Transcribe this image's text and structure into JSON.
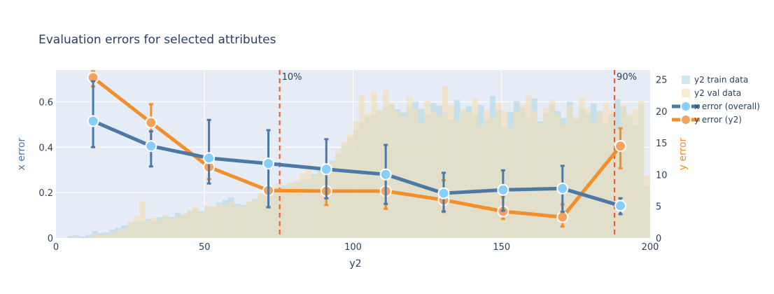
{
  "chart_data": {
    "type": "line",
    "title": "Evaluation errors for selected attributes",
    "xlabel": "y2",
    "ylabel_left": "x error",
    "ylabel_right": "y error",
    "xlim": [
      0,
      200
    ],
    "ylim_left": [
      0,
      0.74
    ],
    "ylim_right": [
      0,
      26.5
    ],
    "x_ticks": [
      0,
      50,
      100,
      150,
      200
    ],
    "y_left_ticks": [
      0,
      0.2,
      0.4,
      0.6
    ],
    "y_left_tick_labels": [
      "0",
      "0.2",
      "0.4",
      "0.6"
    ],
    "y_right_ticks": [
      0,
      5,
      10,
      15,
      20,
      25
    ],
    "grid": true,
    "legend_position": "top-right",
    "colors": {
      "x_line": "#4c78a8",
      "x_marker": "#87cefa",
      "y_line": "#f28e2b",
      "y_marker": "#f5a25d",
      "train_hist": "#add8e6",
      "val_hist": "#f5deb3",
      "vline": "#f05a28",
      "plot_bg": "#e5ecf6"
    },
    "vlines": [
      {
        "x": 75.3,
        "label": "10%"
      },
      {
        "x": 188,
        "label": "90%"
      }
    ],
    "x_error": {
      "name": "x error (overall)",
      "x": [
        12.5,
        32,
        51.5,
        71.5,
        91,
        111,
        130.5,
        150.5,
        170.5,
        190
      ],
      "y": [
        0.515,
        0.405,
        0.352,
        0.328,
        0.303,
        0.28,
        0.197,
        0.212,
        0.218,
        0.142
      ],
      "err_upper": [
        0.69,
        0.47,
        0.52,
        0.475,
        0.435,
        0.41,
        0.287,
        0.298,
        0.318,
        0.175
      ],
      "err_lower": [
        0.4,
        0.315,
        0.24,
        0.135,
        0.175,
        0.15,
        0.117,
        0.12,
        0.115,
        0.105
      ]
    },
    "y_error": {
      "name": "y error (y2)",
      "x": [
        12.5,
        32,
        51.5,
        71.5,
        91,
        111,
        130.5,
        150.5,
        170.5,
        190
      ],
      "y": [
        25.3,
        18.2,
        11.2,
        7.5,
        7.4,
        7.4,
        6.0,
        4.2,
        3.3,
        14.5
      ],
      "err_upper": [
        26.3,
        21.1,
        13.0,
        11.9,
        10.5,
        10.2,
        9.1,
        6.5,
        5.3,
        17.3
      ],
      "err_lower": [
        23.9,
        15.3,
        9.3,
        4.9,
        5.2,
        4.6,
        4.1,
        3.0,
        1.8,
        11.0
      ]
    },
    "train_hist": {
      "name": "y2 train data",
      "bin_width": 2,
      "start": 0,
      "counts": [
        0,
        0,
        0.3,
        0.4,
        0.2,
        0.5,
        1.1,
        0.8,
        0.9,
        1.3,
        1.6,
        2.0,
        2.4,
        2.6,
        2.5,
        3.0,
        2.7,
        3.3,
        3.6,
        3.3,
        4.0,
        3.7,
        4.3,
        4.6,
        4.2,
        5.0,
        4.9,
        5.6,
        6.0,
        6.4,
        5.4,
        5.2,
        5.7,
        6.2,
        7.0,
        7.3,
        7.7,
        8.1,
        8.3,
        8.6,
        8.8,
        9.2,
        9.4,
        10.1,
        10.7,
        11.4,
        12.2,
        13.3,
        14.6,
        15.9,
        17.1,
        18.3,
        19.1,
        19.6,
        20.0,
        20.7,
        21.0,
        20.3,
        19.8,
        20.6,
        21.5,
        20.4,
        19.4,
        21.3,
        20.9,
        19.8,
        18.7,
        21.8,
        20.0,
        20.8,
        19.4,
        21.0,
        18.5,
        22.4,
        20.2,
        17.5,
        19.9,
        21.6,
        20.6,
        19.0,
        22.0,
        18.4,
        19.7,
        21.1,
        20.0,
        18.9,
        21.5,
        18.7,
        20.4,
        19.6,
        21.2,
        20.0,
        18.2,
        19.5,
        21.9,
        20.8,
        19.1,
        17.8,
        21.0,
        8.2
      ]
    },
    "val_hist": {
      "name": "y2 val data",
      "bin_width": 2,
      "start": 0,
      "counts": [
        0,
        0,
        0,
        0.3,
        0,
        0.2,
        0.7,
        0.5,
        0.6,
        0.9,
        1.2,
        1.5,
        2.6,
        3.5,
        5.8,
        2.7,
        3.2,
        2.9,
        3.6,
        3.0,
        3.5,
        3.8,
        4.4,
        4.9,
        4.0,
        5.1,
        5.0,
        5.3,
        5.2,
        5.8,
        5.1,
        5.0,
        5.7,
        6.1,
        7.1,
        7.7,
        8.3,
        8.7,
        8.1,
        8.8,
        9.1,
        10.2,
        11.6,
        9.8,
        10.4,
        11.0,
        12.0,
        14.0,
        15.2,
        16.3,
        18.4,
        22.5,
        19.6,
        23.1,
        20.2,
        23.3,
        21.2,
        20.0,
        19.2,
        22.3,
        20.5,
        18.1,
        21.7,
        20.0,
        19.3,
        24.0,
        21.0,
        18.6,
        20.4,
        19.8,
        22.0,
        17.8,
        20.2,
        19.0,
        21.3,
        20.0,
        17.4,
        19.9,
        21.0,
        22.4,
        20.1,
        18.0,
        20.6,
        21.8,
        19.4,
        17.9,
        20.9,
        19.2,
        22.2,
        20.6,
        18.3,
        19.8,
        21.4,
        20.2,
        17.1,
        21.0,
        19.5,
        20.3,
        21.6,
        9.9
      ]
    }
  }
}
